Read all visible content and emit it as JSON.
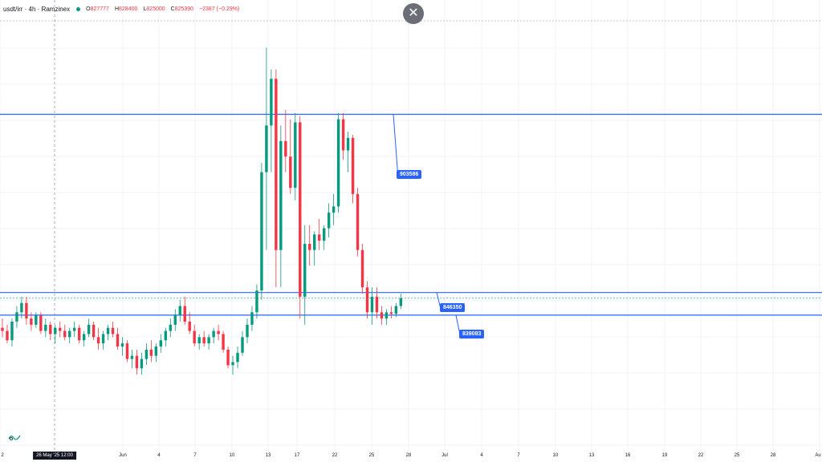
{
  "legend": {
    "title": "usdt/irr · 4h · Ramzinex",
    "ohlc": [
      {
        "key": "O",
        "value": "827777"
      },
      {
        "key": "H",
        "value": "828400"
      },
      {
        "key": "L",
        "value": "825000"
      },
      {
        "key": "C",
        "value": "825390"
      }
    ],
    "change": "−2387 (−0.29%)"
  },
  "close_button": {
    "glyph": "✕"
  },
  "levels": [
    {
      "label": "903586",
      "price": 903586
    },
    {
      "label": "846350",
      "price": 846350
    },
    {
      "label": "839083",
      "price": 839083
    }
  ],
  "xaxis": {
    "ticks": [
      "2",
      "Jun",
      "4",
      "7",
      "10",
      "13",
      "17",
      "22",
      "25",
      "28",
      "Jul",
      "4",
      "7",
      "10",
      "13",
      "16",
      "19",
      "22",
      "25",
      "28",
      "Au"
    ],
    "crosshair_date": "26 May '25   12:00"
  },
  "colors": {
    "up": "#089981",
    "down": "#f23645",
    "level_line": "#2962ff",
    "grid": "#f0f3fa"
  },
  "icons": {
    "close": "close-icon",
    "logo": "tradingview-logo-icon"
  },
  "chart_data": {
    "type": "candlestick",
    "symbol": "usdt/irr",
    "interval": "4h",
    "x_start": "2025-05-22",
    "yaxis_range": [
      812000,
      930000
    ],
    "candles": [
      [
        835000,
        838000,
        832000,
        834000
      ],
      [
        834000,
        836000,
        830000,
        831000
      ],
      [
        831000,
        838000,
        829000,
        837000
      ],
      [
        837000,
        842000,
        835000,
        840000
      ],
      [
        840000,
        845000,
        838000,
        843000
      ],
      [
        843000,
        845000,
        836000,
        838000
      ],
      [
        838000,
        840000,
        834000,
        836000
      ],
      [
        836000,
        840000,
        835000,
        839000
      ],
      [
        839000,
        840000,
        833000,
        834000
      ],
      [
        834000,
        838000,
        832000,
        836000
      ],
      [
        836000,
        837000,
        831000,
        833000
      ],
      [
        833000,
        836000,
        830000,
        835000
      ],
      [
        835000,
        837000,
        832000,
        834000
      ],
      [
        834000,
        836000,
        831000,
        832000
      ],
      [
        832000,
        835000,
        830000,
        834000
      ],
      [
        834000,
        837000,
        832000,
        835000
      ],
      [
        835000,
        836000,
        830000,
        831000
      ],
      [
        831000,
        834000,
        829000,
        833000
      ],
      [
        833000,
        838000,
        832000,
        836000
      ],
      [
        836000,
        837000,
        831000,
        832000
      ],
      [
        832000,
        835000,
        828000,
        830000
      ],
      [
        830000,
        834000,
        828000,
        833000
      ],
      [
        833000,
        836000,
        831000,
        835000
      ],
      [
        835000,
        837000,
        832000,
        833000
      ],
      [
        833000,
        835000,
        828000,
        829000
      ],
      [
        829000,
        832000,
        826000,
        830000
      ],
      [
        830000,
        831000,
        824000,
        825000
      ],
      [
        825000,
        828000,
        822000,
        826000
      ],
      [
        826000,
        828000,
        820000,
        822000
      ],
      [
        822000,
        827000,
        820000,
        825000
      ],
      [
        825000,
        830000,
        823000,
        828000
      ],
      [
        828000,
        831000,
        824000,
        826000
      ],
      [
        826000,
        830000,
        824000,
        829000
      ],
      [
        829000,
        833000,
        827000,
        831000
      ],
      [
        831000,
        835000,
        829000,
        834000
      ],
      [
        834000,
        838000,
        832000,
        836000
      ],
      [
        836000,
        841000,
        834000,
        839000
      ],
      [
        839000,
        844000,
        837000,
        842000
      ],
      [
        842000,
        845000,
        836000,
        837000
      ],
      [
        837000,
        840000,
        833000,
        834000
      ],
      [
        834000,
        836000,
        829000,
        830000
      ],
      [
        830000,
        833000,
        828000,
        832000
      ],
      [
        832000,
        834000,
        829000,
        830000
      ],
      [
        830000,
        833000,
        828000,
        832000
      ],
      [
        832000,
        835000,
        830000,
        834000
      ],
      [
        834000,
        836000,
        831000,
        833000
      ],
      [
        833000,
        834000,
        827000,
        828000
      ],
      [
        828000,
        829000,
        822000,
        823000
      ],
      [
        823000,
        826000,
        820000,
        824000
      ],
      [
        824000,
        829000,
        822000,
        827000
      ],
      [
        827000,
        834000,
        826000,
        832000
      ],
      [
        832000,
        838000,
        830000,
        836000
      ],
      [
        836000,
        842000,
        834000,
        840000
      ],
      [
        840000,
        849000,
        838000,
        847000
      ],
      [
        847000,
        888000,
        844000,
        885000
      ],
      [
        885000,
        925000,
        860000,
        900000
      ],
      [
        900000,
        918000,
        885000,
        915000
      ],
      [
        915000,
        918000,
        848000,
        860000
      ],
      [
        860000,
        900000,
        848000,
        895000
      ],
      [
        895000,
        905000,
        885000,
        890000
      ],
      [
        890000,
        902000,
        878000,
        880000
      ],
      [
        880000,
        904000,
        876000,
        901000
      ],
      [
        901000,
        903000,
        838000,
        845000
      ],
      [
        845000,
        868000,
        836000,
        862000
      ],
      [
        862000,
        868000,
        855000,
        860000
      ],
      [
        860000,
        866000,
        855000,
        865000
      ],
      [
        865000,
        870000,
        860000,
        863000
      ],
      [
        863000,
        868000,
        860000,
        867000
      ],
      [
        867000,
        875000,
        864000,
        872000
      ],
      [
        872000,
        878000,
        868000,
        874000
      ],
      [
        874000,
        904000,
        872000,
        902000
      ],
      [
        902000,
        904000,
        889000,
        892000
      ],
      [
        892000,
        898000,
        885000,
        896000
      ],
      [
        896000,
        897000,
        875000,
        878000
      ],
      [
        878000,
        880000,
        858000,
        860000
      ],
      [
        860000,
        862000,
        846000,
        848000
      ],
      [
        848000,
        850000,
        838000,
        840000
      ],
      [
        840000,
        848000,
        836000,
        845000
      ],
      [
        845000,
        848000,
        838000,
        840000
      ],
      [
        840000,
        842000,
        836000,
        838000
      ],
      [
        838000,
        841000,
        836000,
        840000
      ],
      [
        840000,
        842000,
        838000,
        839500
      ],
      [
        839500,
        843000,
        838500,
        842000
      ],
      [
        842000,
        846000,
        841000,
        844500
      ]
    ]
  }
}
